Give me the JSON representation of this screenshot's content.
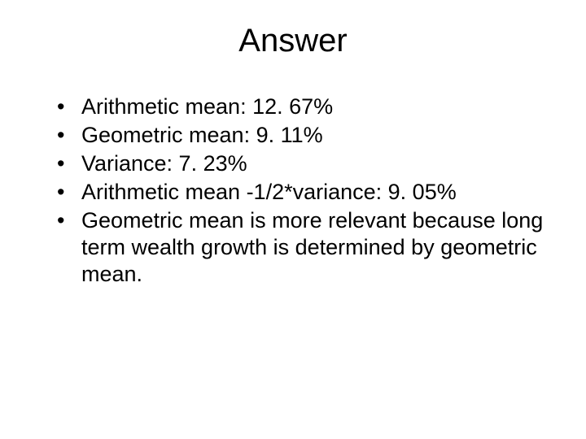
{
  "title": "Answer",
  "bullets": [
    "Arithmetic mean: 12. 67%",
    "Geometric mean: 9. 11%",
    "Variance: 7. 23%",
    "Arithmetic mean -1/2*variance: 9. 05%",
    "Geometric mean is more relevant because long term wealth growth is determined by geometric mean."
  ],
  "colors": {
    "background": "#ffffff",
    "text": "#000000"
  },
  "typography": {
    "title_fontsize": 40,
    "bullet_fontsize": 27,
    "font_family": "Arial"
  }
}
